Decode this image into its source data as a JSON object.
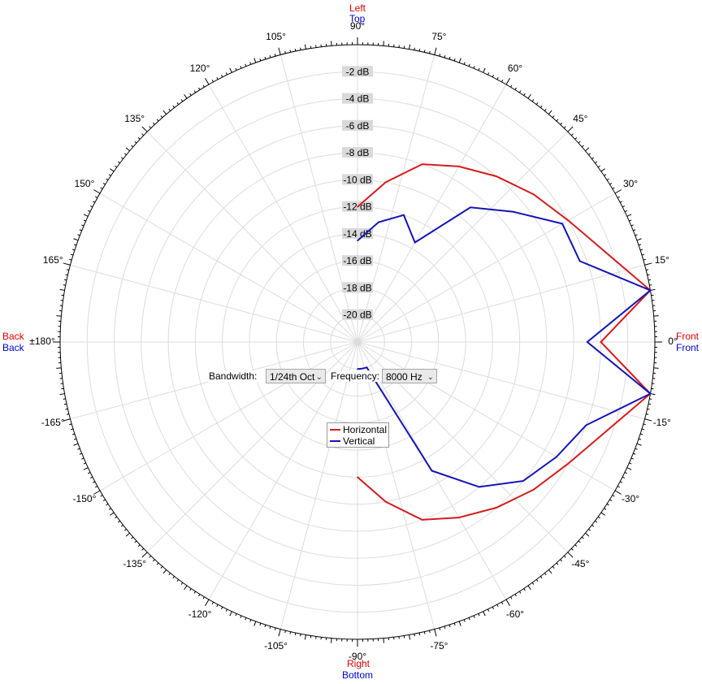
{
  "chart_data": {
    "type": "polar-line",
    "theta_range_deg": [
      -180,
      180
    ],
    "r_range_db": [
      -22,
      0
    ],
    "radial_ticks": [
      "-2 dB",
      "-4 dB",
      "-6 dB",
      "-8 dB",
      "-10 dB",
      "-12 dB",
      "-14 dB",
      "-16 dB",
      "-18 dB",
      "-20 dB"
    ],
    "radial_tick_values": [
      -2,
      -4,
      -6,
      -8,
      -10,
      -12,
      -14,
      -16,
      -18,
      -20
    ],
    "angle_ticks": [
      {
        "deg": 0,
        "label": "0°"
      },
      {
        "deg": 15,
        "label": "15°"
      },
      {
        "deg": 30,
        "label": "30°"
      },
      {
        "deg": 45,
        "label": "45°"
      },
      {
        "deg": 60,
        "label": "60°"
      },
      {
        "deg": 75,
        "label": "75°"
      },
      {
        "deg": 90,
        "label": "90°"
      },
      {
        "deg": 105,
        "label": "105°"
      },
      {
        "deg": 120,
        "label": "120°"
      },
      {
        "deg": 135,
        "label": "135°"
      },
      {
        "deg": 150,
        "label": "150°"
      },
      {
        "deg": 165,
        "label": "165°"
      },
      {
        "deg": 180,
        "label": "±180°"
      },
      {
        "deg": -165,
        "label": "-165°"
      },
      {
        "deg": -150,
        "label": "-150°"
      },
      {
        "deg": -135,
        "label": "-135°"
      },
      {
        "deg": -120,
        "label": "-120°"
      },
      {
        "deg": -105,
        "label": "-105°"
      },
      {
        "deg": -90,
        "label": "-90°"
      },
      {
        "deg": -75,
        "label": "-75°"
      },
      {
        "deg": -60,
        "label": "-60°"
      },
      {
        "deg": -45,
        "label": "-45°"
      },
      {
        "deg": -30,
        "label": "-30°"
      },
      {
        "deg": -15,
        "label": "-15°"
      }
    ],
    "direction_labels": {
      "front_h": "Front",
      "front_v": "Front",
      "back_h": "Back",
      "back_v": "Back",
      "top_h": "Left",
      "top_v": "Top",
      "bottom_h": "Right",
      "bottom_v": "Bottom"
    },
    "series": [
      {
        "name": "Horizontal",
        "color": "#d41c1c",
        "points": [
          [
            90,
            -12
          ],
          [
            80,
            -10
          ],
          [
            70,
            -8
          ],
          [
            60,
            -7
          ],
          [
            50,
            -6
          ],
          [
            40,
            -5
          ],
          [
            30,
            -4
          ],
          [
            20,
            -2.5
          ],
          [
            10,
            0
          ],
          [
            0,
            -4
          ],
          [
            -10,
            0
          ],
          [
            -20,
            -2.5
          ],
          [
            -30,
            -4
          ],
          [
            -40,
            -5
          ],
          [
            -50,
            -6
          ],
          [
            -60,
            -7
          ],
          [
            -70,
            -8
          ],
          [
            -80,
            -10
          ],
          [
            -90,
            -12
          ]
        ]
      },
      {
        "name": "Vertical",
        "color": "#1414b4",
        "points": [
          [
            90,
            -14.5
          ],
          [
            80,
            -13
          ],
          [
            70,
            -12
          ],
          [
            60,
            -13.5
          ],
          [
            50,
            -9
          ],
          [
            40,
            -7
          ],
          [
            30,
            -4.5
          ],
          [
            20,
            -4.5
          ],
          [
            10,
            0
          ],
          [
            0,
            -5
          ],
          [
            -10,
            0
          ],
          [
            -20,
            -4
          ],
          [
            -30,
            -5
          ],
          [
            -40,
            -6
          ],
          [
            -50,
            -8
          ],
          [
            -60,
            -11
          ],
          [
            -70,
            -20
          ],
          [
            -80,
            -20
          ],
          [
            -90,
            -20
          ]
        ]
      }
    ]
  },
  "controls": {
    "bandwidth_label": "Bandwidth:",
    "bandwidth_value": "1/24th Oct",
    "frequency_label": "Frequency:",
    "frequency_value": "8000 Hz"
  },
  "legend": {
    "horizontal": "Horizontal",
    "vertical": "Vertical"
  }
}
